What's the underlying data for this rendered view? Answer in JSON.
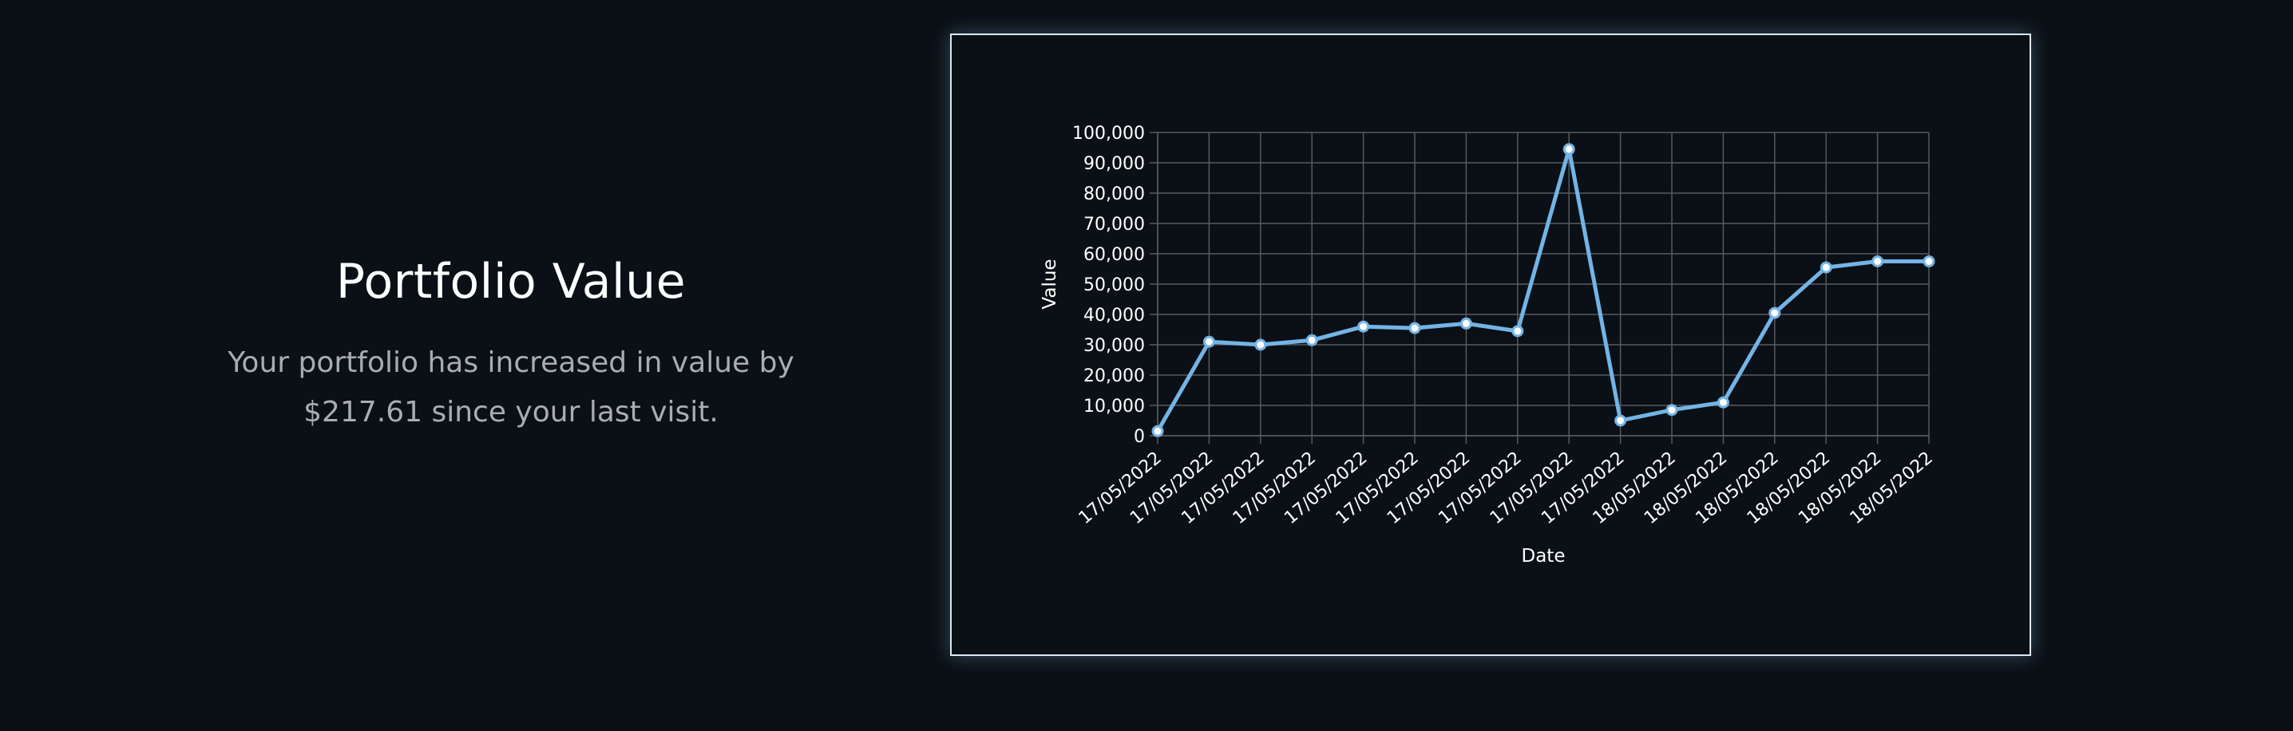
{
  "intro": {
    "title": "Portfolio Value",
    "description": "Your portfolio has increased in value by $217.61 since your last visit."
  },
  "colors": {
    "background": "#0b1016",
    "line": "#73b4e6",
    "grid": "#555a60",
    "text": "#ffffff",
    "muted_text": "#a9adb2",
    "card_border": "#dbe9f7"
  },
  "chart_data": {
    "type": "line",
    "xlabel": "Date",
    "ylabel": "Value",
    "ylim": [
      0,
      100000
    ],
    "yticks": [
      0,
      10000,
      20000,
      30000,
      40000,
      50000,
      60000,
      70000,
      80000,
      90000,
      100000
    ],
    "ytick_labels": [
      "0",
      "10,000",
      "20,000",
      "30,000",
      "40,000",
      "50,000",
      "60,000",
      "70,000",
      "80,000",
      "90,000",
      "100,000"
    ],
    "grid": true,
    "categories": [
      "17/05/2022",
      "17/05/2022",
      "17/05/2022",
      "17/05/2022",
      "17/05/2022",
      "17/05/2022",
      "17/05/2022",
      "17/05/2022",
      "17/05/2022",
      "17/05/2022",
      "18/05/2022",
      "18/05/2022",
      "18/05/2022",
      "18/05/2022",
      "18/05/2022",
      "18/05/2022"
    ],
    "series": [
      {
        "values": [
          1500,
          31000,
          30000,
          31500,
          36000,
          35500,
          37000,
          34500,
          94500,
          5000,
          8500,
          11000,
          40500,
          55500,
          57500,
          57500
        ]
      }
    ]
  }
}
